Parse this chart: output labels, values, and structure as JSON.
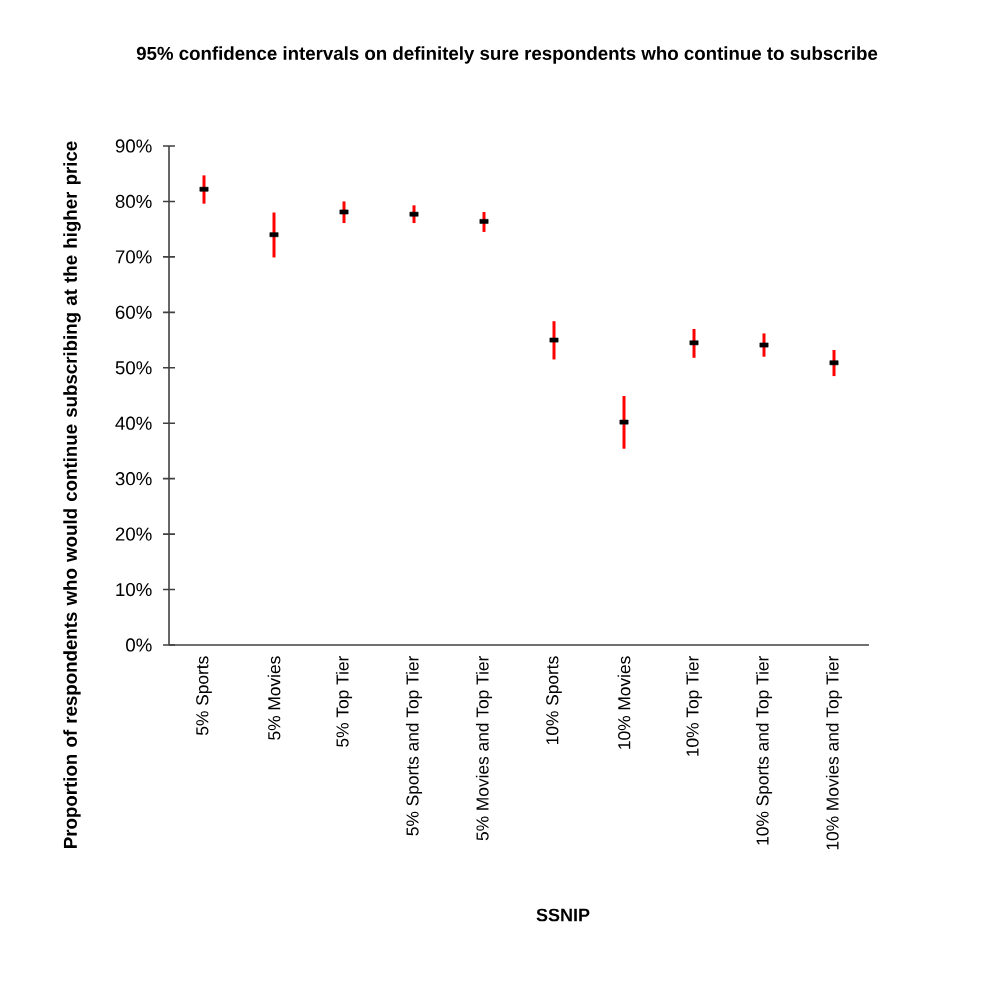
{
  "chart_data": {
    "type": "scatter",
    "title": "95% confidence intervals on definitely sure respondents who continue to subscribe",
    "xlabel": "SSNIP",
    "ylabel": "Proportion of respondents who would continue subscribing at the higher price",
    "categories": [
      "5% Sports",
      "5% Movies",
      "5% Top Tier",
      "5% Sports and Top Tier",
      "5% Movies and Top Tier",
      "10% Sports",
      "10% Movies",
      "10% Top Tier",
      "10% Sports and Top Tier",
      "10% Movies and Top Tier"
    ],
    "series": [
      {
        "color": "#000000",
        "values": [
          82.2,
          74.0,
          78.1,
          77.7,
          76.4,
          55.0,
          40.2,
          54.5,
          54.1,
          50.9
        ],
        "errors": [
          [
            79.6,
            84.7
          ],
          [
            69.9,
            78.0
          ],
          [
            76.1,
            80.0
          ],
          [
            76.1,
            79.3
          ],
          [
            74.5,
            78.1
          ],
          [
            51.5,
            58.4
          ],
          [
            35.4,
            44.9
          ],
          [
            51.8,
            57.0
          ],
          [
            52.0,
            56.2
          ],
          [
            48.5,
            53.2
          ]
        ]
      }
    ],
    "ylim": [
      0,
      90
    ],
    "yticks": [
      {
        "value": 0,
        "label": "0%"
      },
      {
        "value": 10,
        "label": "10%"
      },
      {
        "value": 20,
        "label": "20%"
      },
      {
        "value": 30,
        "label": "30%"
      },
      {
        "value": 40,
        "label": "40%"
      },
      {
        "value": 50,
        "label": "50%"
      },
      {
        "value": 60,
        "label": "60%"
      },
      {
        "value": 70,
        "label": "70%"
      },
      {
        "value": 80,
        "label": "80%"
      },
      {
        "value": 90,
        "label": "90%"
      }
    ],
    "grid": false,
    "legend": false,
    "marker": "square"
  }
}
